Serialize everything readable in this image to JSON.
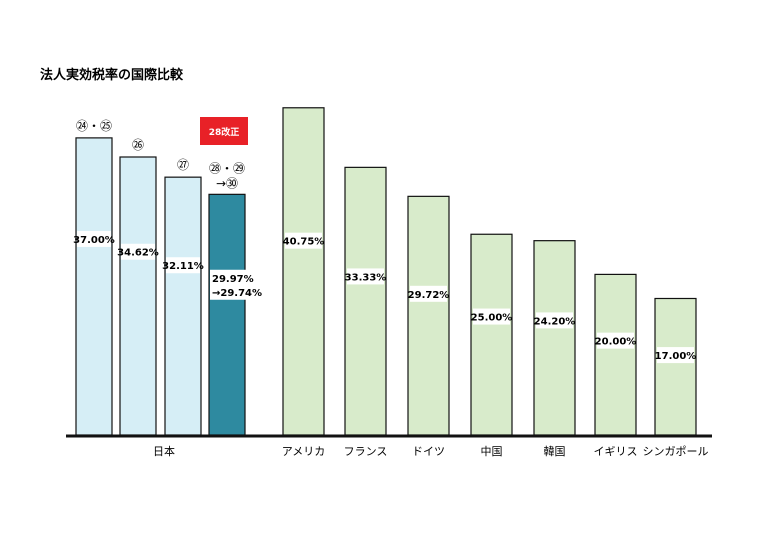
{
  "title": "法人実効税率の国際比較",
  "colors": {
    "japan_fill": "#d6eef6",
    "japan_current_fill": "#2e8aa0",
    "other_fill": "#d8ebcb",
    "badge": "#e82127",
    "stroke": "#111111"
  },
  "badge_label": "28改正",
  "japan_label": "日本",
  "chart_data": {
    "type": "bar",
    "title": "法人実効税率の国際比較",
    "ylim": [
      0,
      45
    ],
    "japan": [
      {
        "year_label": "㉔・㉕",
        "value": 37.0,
        "label": "37.00%"
      },
      {
        "year_label": "㉖",
        "value": 34.62,
        "label": "34.62%"
      },
      {
        "year_label": "㉗",
        "value": 32.11,
        "label": "32.11%"
      },
      {
        "year_label": "㉘・㉙",
        "year_label_2": "→㉚",
        "value": 29.97,
        "label": "29.97%",
        "label_2": "→29.74%",
        "highlight": true
      }
    ],
    "countries": [
      {
        "name": "アメリカ",
        "value": 40.75,
        "label": "40.75%"
      },
      {
        "name": "フランス",
        "value": 33.33,
        "label": "33.33%"
      },
      {
        "name": "ドイツ",
        "value": 29.72,
        "label": "29.72%"
      },
      {
        "name": "中国",
        "value": 25.0,
        "label": "25.00%"
      },
      {
        "name": "韓国",
        "value": 24.2,
        "label": "24.20%"
      },
      {
        "name": "イギリス",
        "value": 20.0,
        "label": "20.00%"
      },
      {
        "name": "シンガポール",
        "value": 17.0,
        "label": "17.00%"
      }
    ]
  }
}
